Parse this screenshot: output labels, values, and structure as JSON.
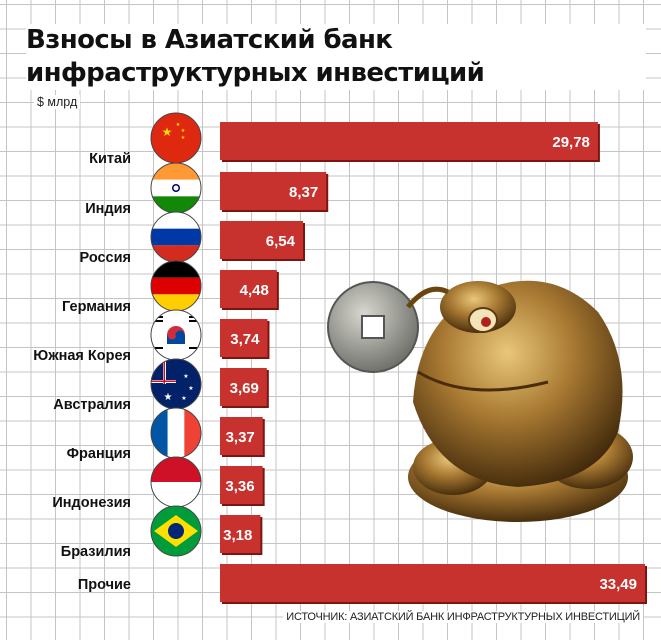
{
  "title_line1": "Взносы в Азиатский банк",
  "title_line2": "инфраструктурных инвестиций",
  "unit": "$ млрд",
  "source": "ИСТОЧНИК: АЗИАТСКИЙ БАНК ИНФРАСТРУКТУРНЫХ ИНВЕСТИЦИЙ",
  "colors": {
    "bar": "#c8322e",
    "bar_shadow": "#7a1512",
    "label": "#ffffff"
  },
  "chart_data": {
    "type": "bar",
    "orientation": "horizontal",
    "categories": [
      "Китай",
      "Индия",
      "Россия",
      "Германия",
      "Южная Корея",
      "Австралия",
      "Франция",
      "Индонезия",
      "Бразилия",
      "Прочие"
    ],
    "values": [
      29.78,
      8.37,
      6.54,
      4.48,
      3.74,
      3.69,
      3.37,
      3.36,
      3.18,
      33.49
    ],
    "value_labels": [
      "29,78",
      "8,37",
      "6,54",
      "4,48",
      "3,74",
      "3,69",
      "3,37",
      "3,36",
      "3,18",
      "33,49"
    ],
    "flags": [
      "china-flag-icon",
      "india-flag-icon",
      "russia-flag-icon",
      "germany-flag-icon",
      "south-korea-flag-icon",
      "australia-flag-icon",
      "france-flag-icon",
      "indonesia-flag-icon",
      "brazil-flag-icon",
      ""
    ],
    "ylabel": "$ млрд",
    "xlim": [
      0,
      33.49
    ],
    "grid": true
  }
}
